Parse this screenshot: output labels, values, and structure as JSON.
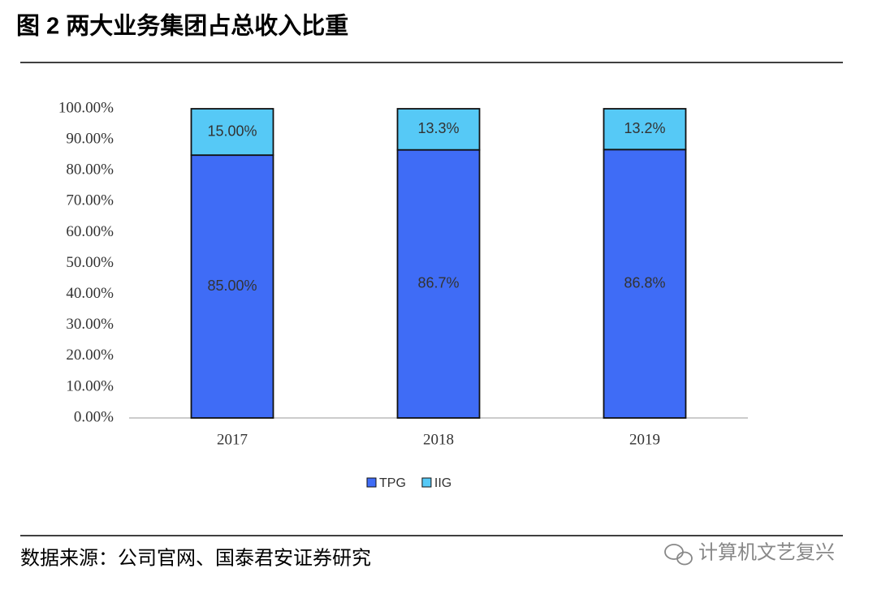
{
  "chart_data": {
    "type": "stacked-bar",
    "title": "图 2 两大业务集团占总收入比重",
    "categories": [
      "2017",
      "2018",
      "2019"
    ],
    "series": [
      {
        "name": "TPG",
        "color": "#3f6cf6",
        "values": [
          85,
          86.7,
          86.8
        ],
        "value_labels": [
          "85.00%",
          "86.7%",
          "86.8%"
        ]
      },
      {
        "name": "IIG",
        "color": "#56c9f6",
        "values": [
          15,
          13.3,
          13.2
        ],
        "value_labels": [
          "15.00%",
          "13.3%",
          "13.2%"
        ]
      }
    ],
    "ylim": [
      0,
      100
    ],
    "yticks": [
      {
        "value": 0,
        "label": "0.00%"
      },
      {
        "value": 10,
        "label": "10.00%"
      },
      {
        "value": 20,
        "label": "20.00%"
      },
      {
        "value": 30,
        "label": "30.00%"
      },
      {
        "value": 40,
        "label": "40.00%"
      },
      {
        "value": 50,
        "label": "50.00%"
      },
      {
        "value": 60,
        "label": "60.00%"
      },
      {
        "value": 70,
        "label": "70.00%"
      },
      {
        "value": 80,
        "label": "80.00%"
      },
      {
        "value": 90,
        "label": "90.00%"
      },
      {
        "value": 100,
        "label": "100.00%"
      }
    ],
    "grid": false,
    "legend": "bottom",
    "source": "数据来源：公司官网、国泰君安证券研究",
    "watermark": "计算机文艺复兴"
  }
}
